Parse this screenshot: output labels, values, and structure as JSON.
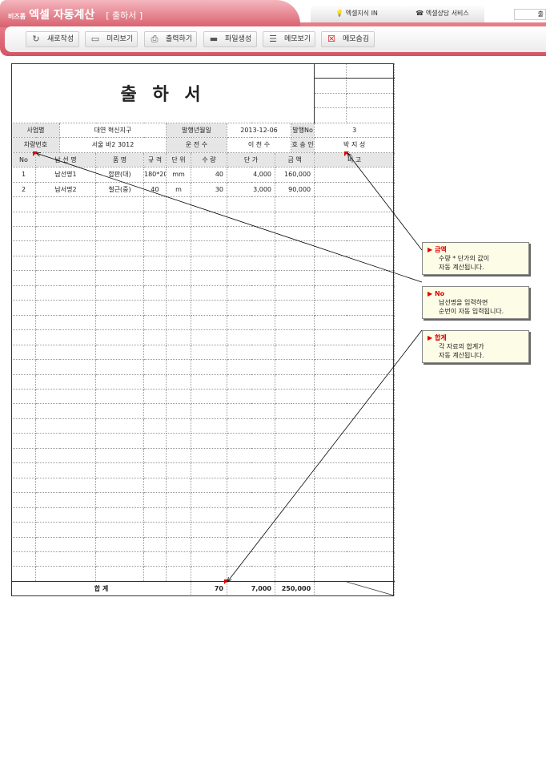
{
  "header": {
    "brand_small": "비즈폼",
    "brand": "엑셀 자동계산",
    "doc": "[ 출하서 ]",
    "tabs": [
      "엑셀지식 IN",
      "엑셀상담 서비스"
    ],
    "search": "출"
  },
  "toolbar": [
    {
      "label": "새로작성",
      "icon": "refresh-icon"
    },
    {
      "label": "미리보기",
      "icon": "monitor-icon"
    },
    {
      "label": "출력하기",
      "icon": "print-icon"
    },
    {
      "label": "파일생성",
      "icon": "folder-icon"
    },
    {
      "label": "메모보기",
      "icon": "memo-icon"
    },
    {
      "label": "메모숨김",
      "icon": "memo-hide-icon"
    }
  ],
  "form": {
    "title": "출 하 서",
    "info": [
      [
        "사업별",
        "대연 혁신지구",
        "발행년월일",
        "2013-12-06",
        "발행No",
        "3"
      ],
      [
        "차량번호",
        "서울 바2 3012",
        "운 전 수",
        "이 천 수",
        "호 송 인",
        "박 지 성"
      ]
    ],
    "columns": [
      "No",
      "납 선 명",
      "품  명",
      "규  격",
      "단 위",
      "수 량",
      "단  가",
      "금  액",
      "비    고"
    ],
    "rows": [
      [
        "1",
        "납선명1",
        "합판(대)",
        "180*200",
        "mm",
        "40",
        "4,000",
        "160,000",
        ""
      ],
      [
        "2",
        "납서명2",
        "철근(중)",
        "40",
        "m",
        "30",
        "3,000",
        "90,000",
        ""
      ]
    ],
    "total": {
      "label": "합    계",
      "qty": "70",
      "price": "7,000",
      "amount": "250,000"
    }
  },
  "callouts": [
    {
      "title": "금액",
      "lines": [
        "수량 * 단가의 값이",
        "자동 계산됩니다."
      ]
    },
    {
      "title": "No",
      "lines": [
        "납선명을 입력하면",
        "순번이 자동 입력됩니다."
      ]
    },
    {
      "title": "합계",
      "lines": [
        "각 자료의 합계가",
        "자동 계산됩니다."
      ]
    }
  ],
  "colors": {
    "brand": "#d9606e",
    "marker": "#e00000",
    "callout_bg": "#fdfce6"
  }
}
